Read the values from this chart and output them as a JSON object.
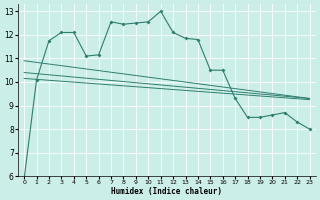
{
  "xlabel": "Humidex (Indice chaleur)",
  "bg_color": "#cceee8",
  "grid_color": "#ffffff",
  "line_color": "#2e7d6e",
  "xlim": [
    -0.5,
    23.5
  ],
  "ylim": [
    6,
    13.3
  ],
  "yticks": [
    6,
    7,
    8,
    9,
    10,
    11,
    12,
    13
  ],
  "xticks": [
    0,
    1,
    2,
    3,
    4,
    5,
    6,
    7,
    8,
    9,
    10,
    11,
    12,
    13,
    14,
    15,
    16,
    17,
    18,
    19,
    20,
    21,
    22,
    23
  ],
  "curve1_x": [
    0,
    1,
    2,
    3,
    4,
    5,
    6,
    7,
    8,
    9,
    10,
    11,
    12,
    13,
    14,
    15,
    16,
    17,
    18,
    19,
    20,
    21,
    22,
    23
  ],
  "curve1_y": [
    5.9,
    10.1,
    11.75,
    12.1,
    12.1,
    11.1,
    11.15,
    12.55,
    12.45,
    12.5,
    12.55,
    13.0,
    12.1,
    11.85,
    11.8,
    10.5,
    10.5,
    9.3,
    8.5,
    8.5,
    8.6,
    8.7,
    8.3,
    8.0
  ],
  "line1_x": [
    0,
    23
  ],
  "line1_y": [
    10.15,
    9.25
  ],
  "line2_x": [
    0,
    23
  ],
  "line2_y": [
    10.4,
    9.3
  ],
  "line3_x": [
    0,
    23
  ],
  "line3_y": [
    10.9,
    9.3
  ]
}
